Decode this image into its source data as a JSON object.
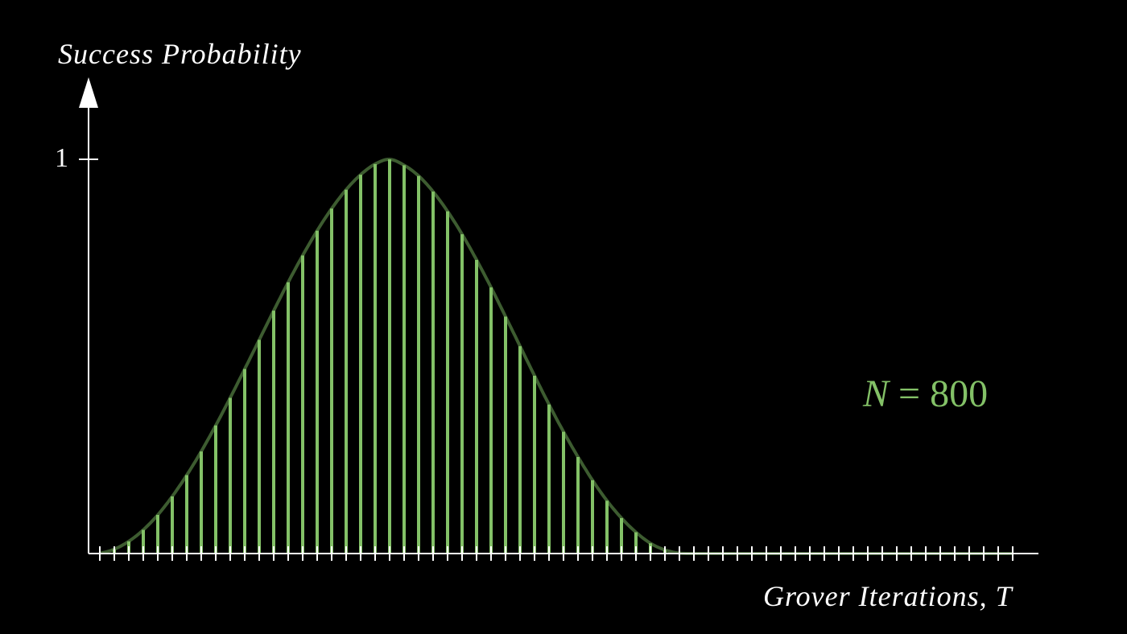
{
  "chart_data": {
    "type": "bar",
    "title": "",
    "ylabel": "Success Probability",
    "xlabel": "Grover Iterations, T",
    "y_ticks": [
      1
    ],
    "y_tick_labels": [
      "1"
    ],
    "ylim": [
      0,
      1
    ],
    "xlim": [
      0,
      63
    ],
    "grid": false,
    "annotation": {
      "variable": "N",
      "operator": "=",
      "value": "800"
    },
    "x": [
      0,
      1,
      2,
      3,
      4,
      5,
      6,
      7,
      8,
      9,
      10,
      11,
      12,
      13,
      14,
      15,
      16,
      17,
      18,
      19,
      20,
      21,
      22,
      23,
      24,
      25,
      26,
      27,
      28,
      29,
      30,
      31,
      32,
      33,
      34,
      35,
      36,
      37,
      38,
      39,
      40,
      41,
      42,
      43,
      44,
      45,
      46,
      47,
      48,
      49,
      50,
      51,
      52,
      53,
      54,
      55,
      56,
      57,
      58,
      59,
      60,
      61,
      62,
      63
    ],
    "series": [
      {
        "values": [
          0.001,
          0.011,
          0.031,
          0.06,
          0.098,
          0.145,
          0.199,
          0.259,
          0.325,
          0.395,
          0.468,
          0.542,
          0.616,
          0.688,
          0.756,
          0.819,
          0.875,
          0.923,
          0.961,
          0.988,
          1.0,
          0.985,
          0.958,
          0.918,
          0.868,
          0.81,
          0.745,
          0.675,
          0.601,
          0.526,
          0.451,
          0.378,
          0.309,
          0.245,
          0.186,
          0.134,
          0.09,
          0.054,
          0.026,
          0.009,
          0.001,
          0,
          0,
          0,
          0,
          0,
          0,
          0,
          0,
          0,
          0,
          0,
          0,
          0,
          0,
          0,
          0,
          0,
          0,
          0,
          0,
          0,
          0,
          0
        ],
        "color": "#83c167"
      }
    ],
    "curve_color": "#3d5c30",
    "bar_color": "#83c167",
    "axis_color": "#ffffff"
  }
}
